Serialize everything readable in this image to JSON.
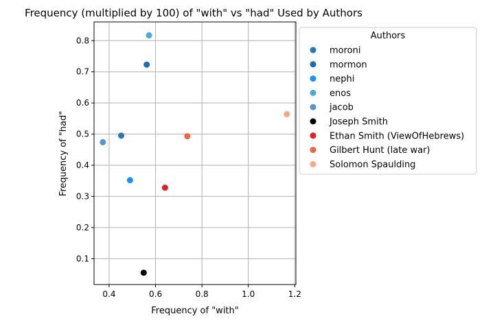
{
  "chart_data": {
    "type": "scatter",
    "title": "Frequency (multiplied by 100) of \"with\" vs \"had\" Used by Authors",
    "xlabel": "Frequency of \"with\"",
    "ylabel": "Frequency of \"had\"",
    "xlim": [
      0.335,
      1.205
    ],
    "ylim": [
      0.017,
      0.86
    ],
    "xticks": [
      0.4,
      0.6,
      0.8,
      1.0,
      1.2
    ],
    "xtick_labels": [
      "0.4",
      "0.6",
      "0.8",
      "1.0",
      "1.2"
    ],
    "yticks": [
      0.1,
      0.2,
      0.3,
      0.4,
      0.5,
      0.6,
      0.7,
      0.8
    ],
    "ytick_labels": [
      "0.1",
      "0.2",
      "0.3",
      "0.4",
      "0.5",
      "0.6",
      "0.7",
      "0.8"
    ],
    "grid": true,
    "legend_title": "Authors",
    "legend_position": "outside-right",
    "series": [
      {
        "name": "moroni",
        "color": "#2878b5",
        "x": 0.452,
        "y": 0.495
      },
      {
        "name": "mormon",
        "color": "#1f6ab5",
        "x": 0.562,
        "y": 0.723
      },
      {
        "name": "nephi",
        "color": "#1e90f0",
        "x": 0.49,
        "y": 0.352
      },
      {
        "name": "enos",
        "color": "#4baad8",
        "x": 0.572,
        "y": 0.817
      },
      {
        "name": "jacob",
        "color": "#5595d0",
        "x": 0.373,
        "y": 0.474
      },
      {
        "name": "Joseph Smith",
        "color": "#000000",
        "x": 0.549,
        "y": 0.055
      },
      {
        "name": "Ethan Smith (ViewOfHebrews)",
        "color": "#e32020",
        "x": 0.641,
        "y": 0.328
      },
      {
        "name": "Gilbert Hunt (late war)",
        "color": "#f26045",
        "x": 0.737,
        "y": 0.493
      },
      {
        "name": "Solomon Spaulding",
        "color": "#f7a888",
        "x": 1.166,
        "y": 0.564
      }
    ]
  }
}
